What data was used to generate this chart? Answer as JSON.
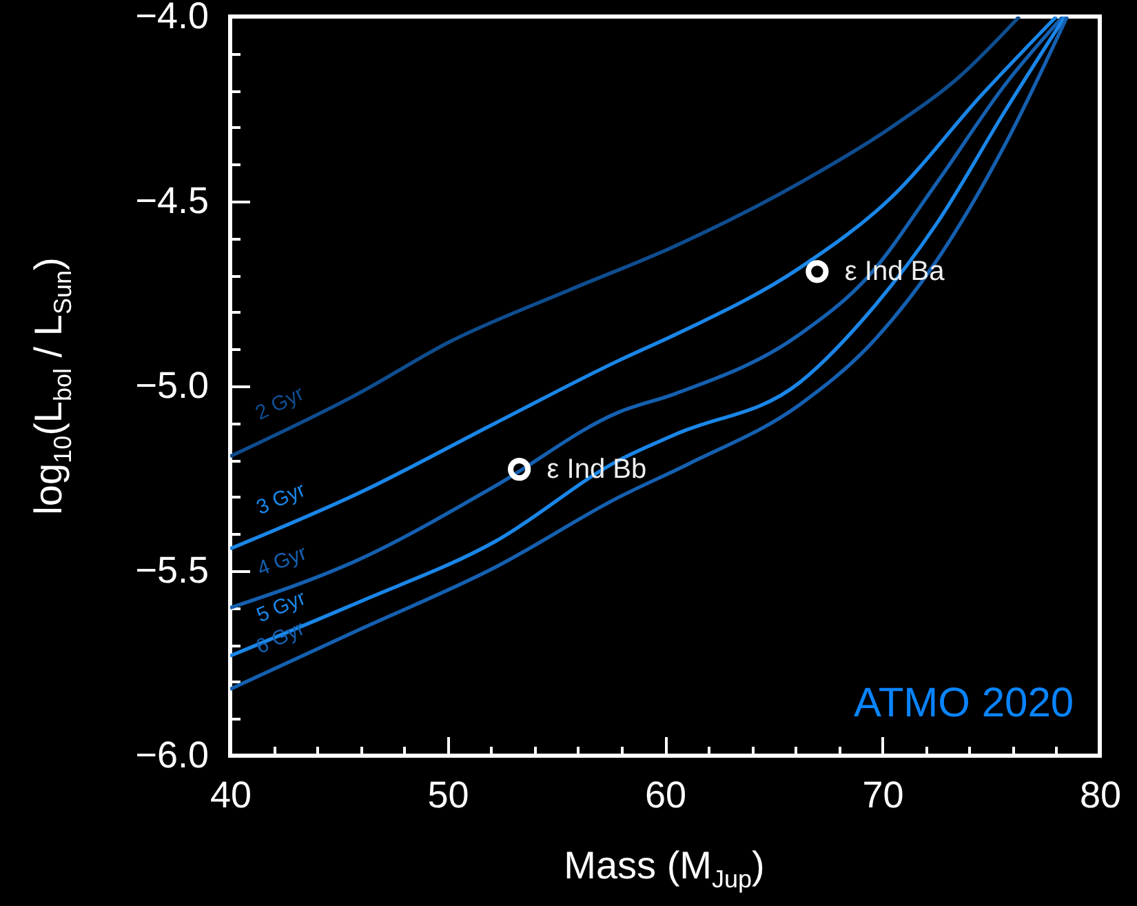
{
  "chart_data": {
    "type": "line",
    "xlabel": "Mass (M$_{Jup}$)",
    "ylabel": "log$_{10}$(L$_{bol}$ / L$_{Sun}$)",
    "xlim": [
      40,
      80
    ],
    "ylim": [
      -6.0,
      -4.0
    ],
    "xticks": [
      40,
      {
        "value": 42,
        "label": null
      },
      {
        "value": 44,
        "label": null
      },
      {
        "value": 46,
        "label": null
      },
      {
        "value": 48,
        "label": null
      },
      50,
      {
        "value": 52,
        "label": null
      },
      {
        "value": 54,
        "label": null
      },
      {
        "value": 56,
        "label": null
      },
      {
        "value": 58,
        "label": null
      },
      60,
      {
        "value": 62,
        "label": null
      },
      {
        "value": 64,
        "label": null
      },
      {
        "value": 66,
        "label": null
      },
      {
        "value": 68,
        "label": null
      },
      70,
      {
        "value": 72,
        "label": null
      },
      {
        "value": 74,
        "label": null
      },
      {
        "value": 76,
        "label": null
      },
      {
        "value": 78,
        "label": null
      },
      80
    ],
    "yticks": [
      {
        "value": -6.0,
        "label": "−6.0"
      },
      {
        "value": -5.9,
        "label": null
      },
      {
        "value": -5.8,
        "label": null
      },
      {
        "value": -5.7,
        "label": null
      },
      {
        "value": -5.6,
        "label": null
      },
      {
        "value": -5.5,
        "label": "−5.5"
      },
      {
        "value": -5.4,
        "label": null
      },
      {
        "value": -5.3,
        "label": null
      },
      {
        "value": -5.2,
        "label": null
      },
      {
        "value": -5.1,
        "label": null
      },
      {
        "value": -5.0,
        "label": "−5.0"
      },
      {
        "value": -4.9,
        "label": null
      },
      {
        "value": -4.8,
        "label": null
      },
      {
        "value": -4.7,
        "label": null
      },
      {
        "value": -4.6,
        "label": null
      },
      {
        "value": -4.5,
        "label": "−4.5"
      },
      {
        "value": -4.4,
        "label": null
      },
      {
        "value": -4.3,
        "label": null
      },
      {
        "value": -4.2,
        "label": null
      },
      {
        "value": -4.1,
        "label": null
      },
      {
        "value": -4.0,
        "label": "−4.0"
      }
    ],
    "series": [
      {
        "name": "2 Gyr",
        "color": "#0f4d8f",
        "x": [
          40,
          45.9,
          50.1,
          55.6,
          60.5,
          66.2,
          70.4,
          73.6,
          76.3
        ],
        "values": [
          -5.19,
          -5.02,
          -4.88,
          -4.74,
          -4.62,
          -4.45,
          -4.3,
          -4.16,
          -4.0
        ]
      },
      {
        "name": "3 Gyr",
        "color": "#1a86e8",
        "x": [
          40,
          45.9,
          52.2,
          57.9,
          60.5,
          66.2,
          70.4,
          74.6,
          78.0
        ],
        "values": [
          -5.44,
          -5.29,
          -5.1,
          -4.93,
          -4.86,
          -4.68,
          -4.49,
          -4.21,
          -4.0
        ]
      },
      {
        "name": "4 Gyr",
        "color": "#1560b0",
        "x": [
          40,
          45.9,
          52.2,
          57.9,
          60.5,
          66.2,
          69.4,
          72.5,
          75.7,
          78.3
        ],
        "values": [
          -5.6,
          -5.47,
          -5.27,
          -5.07,
          -5.02,
          -4.86,
          -4.7,
          -4.45,
          -4.18,
          -4.0
        ]
      },
      {
        "name": "5 Gyr",
        "color": "#1a86e8",
        "x": [
          40,
          45.9,
          52.2,
          57.9,
          60.5,
          66.2,
          69.4,
          72.5,
          75.7,
          78.4
        ],
        "values": [
          -5.73,
          -5.585,
          -5.42,
          -5.2,
          -5.13,
          -4.99,
          -4.8,
          -4.56,
          -4.25,
          -4.0
        ]
      },
      {
        "name": "6 Gyr",
        "color": "#1560b0",
        "x": [
          40,
          45.9,
          52.2,
          57.9,
          61.1,
          66.2,
          69.4,
          72.5,
          75.7,
          78.5
        ],
        "values": [
          -5.82,
          -5.66,
          -5.49,
          -5.3,
          -5.21,
          -5.05,
          -4.89,
          -4.66,
          -4.34,
          -4.0
        ]
      },
      {
        "name": "ε Ind Ba",
        "type": "scatter",
        "color": "#ffffff",
        "x": [
          67.0
        ],
        "values": [
          -4.69
        ]
      },
      {
        "name": "ε Ind Bb",
        "type": "scatter",
        "color": "#ffffff",
        "x": [
          53.3
        ],
        "values": [
          -5.225
        ]
      }
    ],
    "annotations": [
      "ATMO 2020"
    ]
  }
}
